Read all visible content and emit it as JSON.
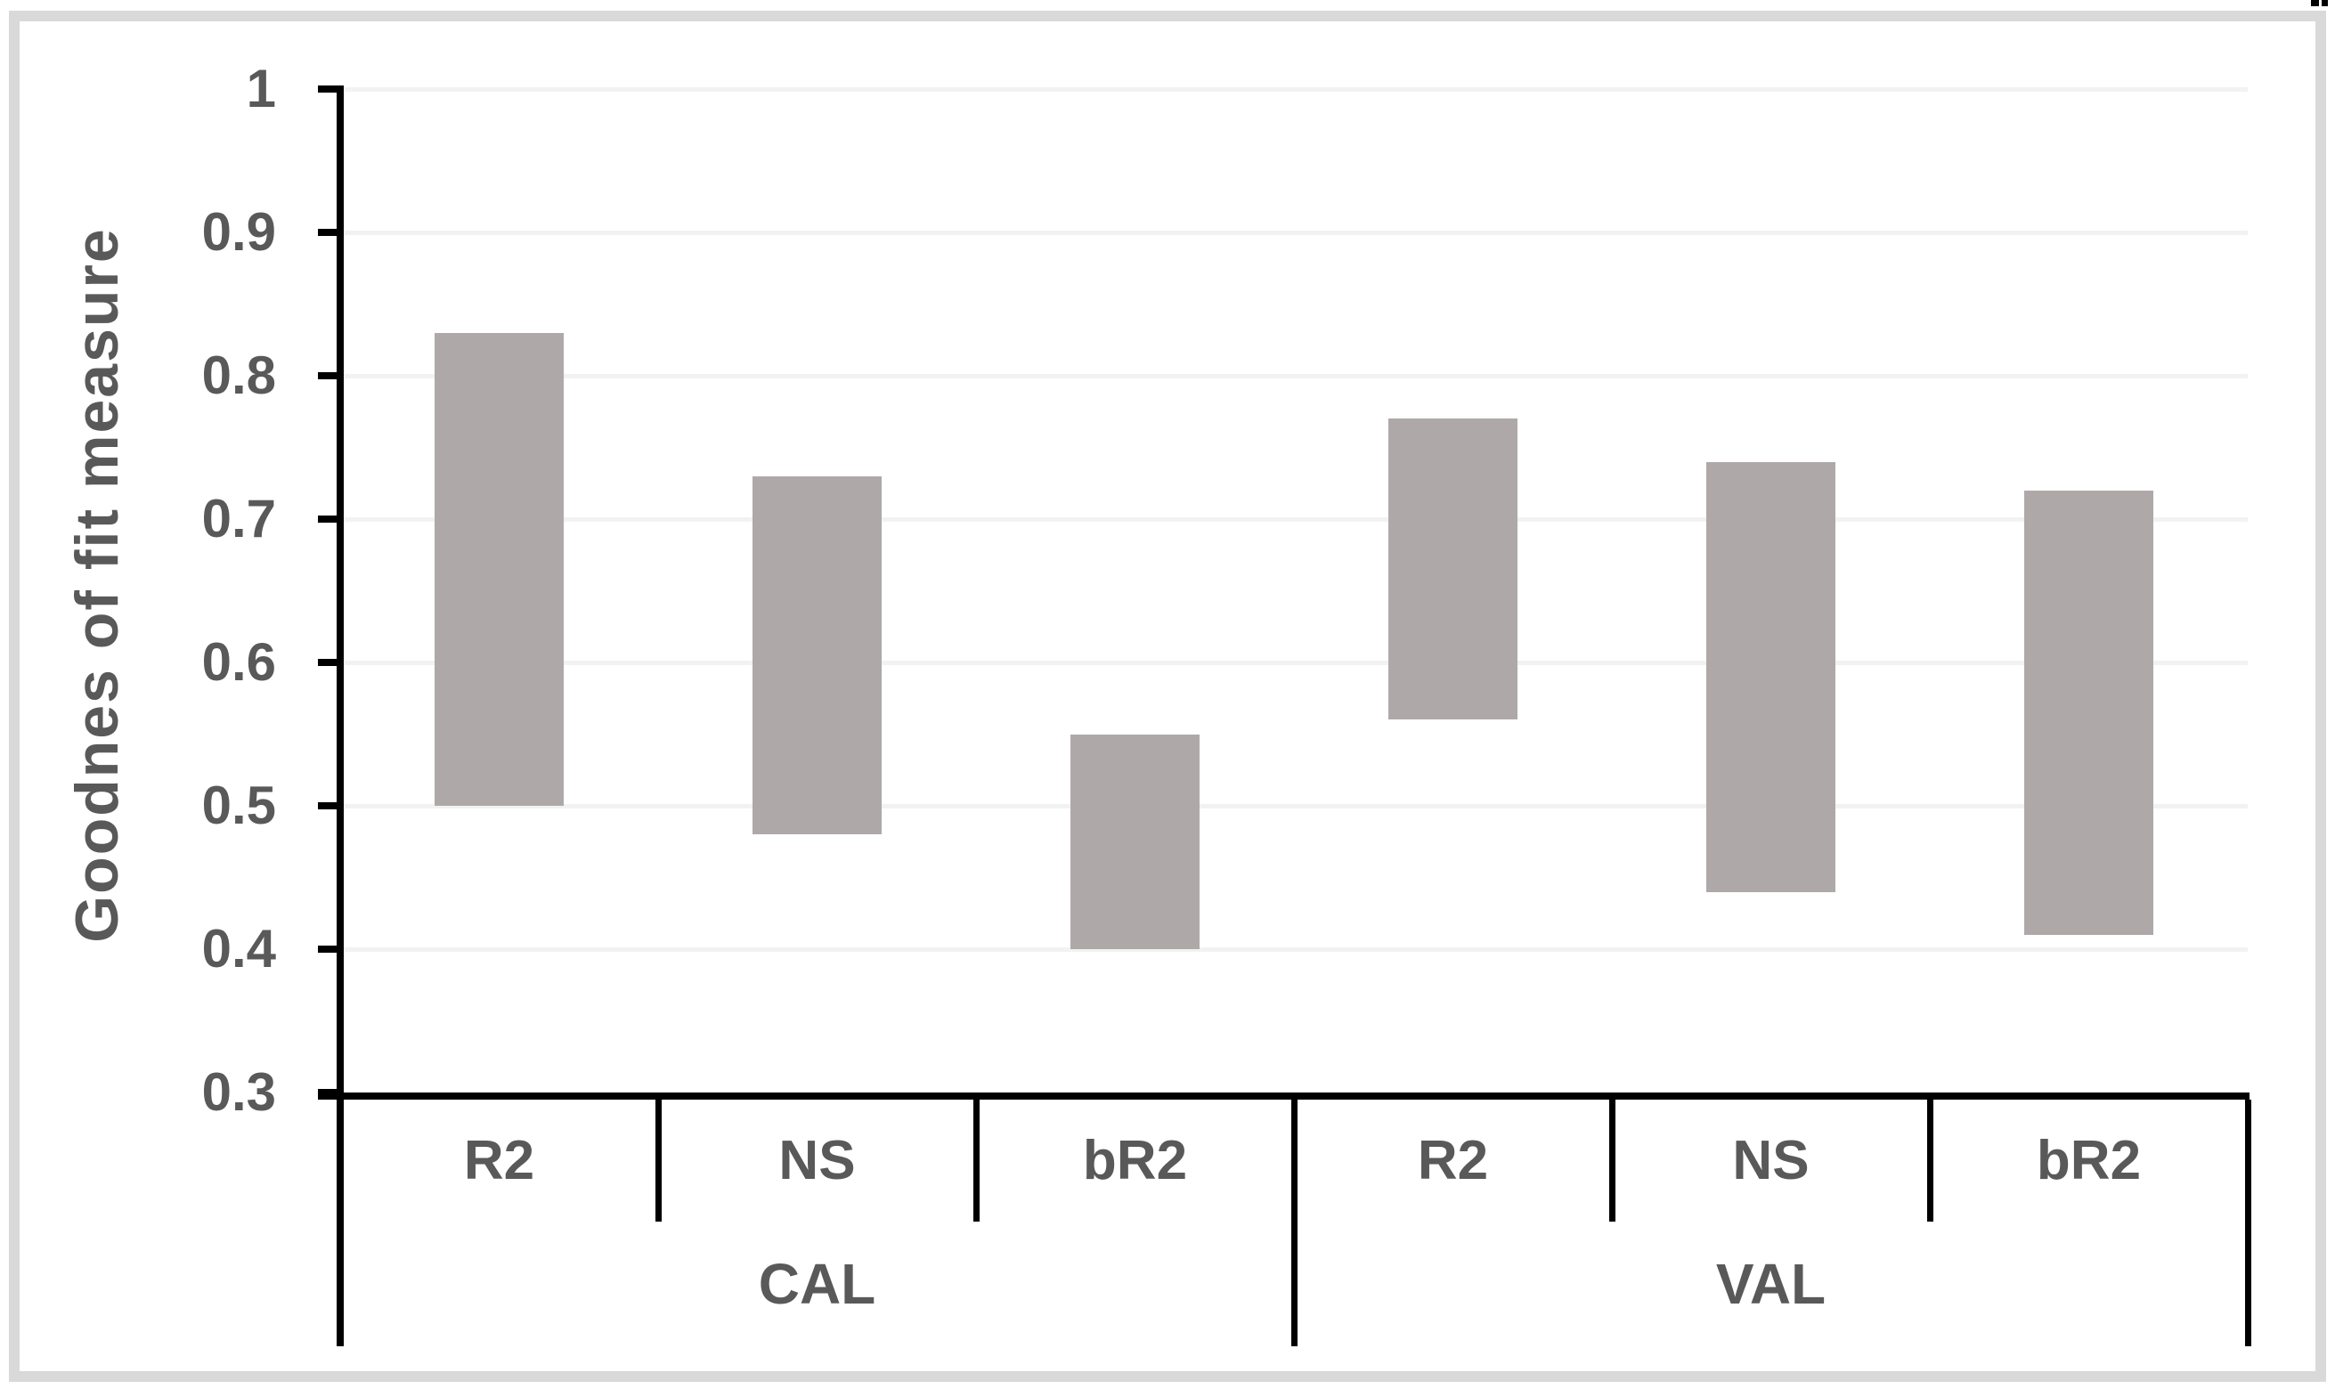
{
  "figure": {
    "border_color": "#d9d9d9",
    "background": "#ffffff",
    "corner_mark_color": "#000000"
  },
  "chart_data": {
    "type": "bar",
    "subtype": "floating-range-bars",
    "title": "",
    "xlabel": "",
    "ylabel": "Goodnes of fit measure",
    "ylim": [
      0.3,
      1.0
    ],
    "yticks": [
      0.3,
      0.4,
      0.5,
      0.6,
      0.7,
      0.8,
      0.9,
      1
    ],
    "ytick_labels": [
      "0.3",
      "0.4",
      "0.5",
      "0.6",
      "0.7",
      "0.8",
      "0.9",
      "1"
    ],
    "grid": true,
    "legend": false,
    "groups": [
      {
        "label": "CAL",
        "categories": [
          "R2",
          "NS",
          "bR2"
        ]
      },
      {
        "label": "VAL",
        "categories": [
          "R2",
          "NS",
          "bR2"
        ]
      }
    ],
    "bars": [
      {
        "group": "CAL",
        "category": "R2",
        "low": 0.5,
        "high": 0.83
      },
      {
        "group": "CAL",
        "category": "NS",
        "low": 0.48,
        "high": 0.73
      },
      {
        "group": "CAL",
        "category": "bR2",
        "low": 0.4,
        "high": 0.55
      },
      {
        "group": "VAL",
        "category": "R2",
        "low": 0.56,
        "high": 0.77
      },
      {
        "group": "VAL",
        "category": "NS",
        "low": 0.44,
        "high": 0.74
      },
      {
        "group": "VAL",
        "category": "bR2",
        "low": 0.41,
        "high": 0.72
      }
    ],
    "colors": {
      "bar": "#aea9a8",
      "gridline": "#f2f2f2",
      "axis": "#000000",
      "labels": "#595959"
    }
  }
}
